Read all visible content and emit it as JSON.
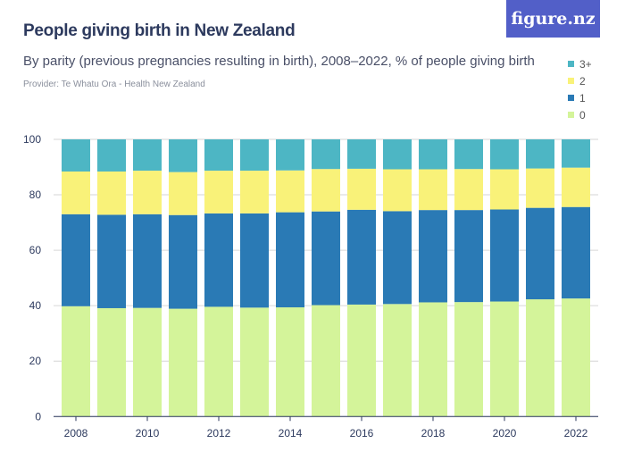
{
  "header": {
    "title": "People giving birth in New Zealand",
    "subtitle": "By parity (previous pregnancies resulting in birth), 2008–2022, % of people giving birth",
    "provider": "Provider: Te Whatu Ora - Health New Zealand",
    "logo": "figure.nz"
  },
  "chart_data": {
    "type": "bar",
    "stacked": true,
    "title": "People giving birth in New Zealand",
    "subtitle": "By parity (previous pregnancies resulting in birth), 2008–2022, % of people giving birth",
    "xlabel": "",
    "ylabel": "",
    "ylim": [
      0,
      100
    ],
    "yticks": [
      0,
      20,
      40,
      60,
      80,
      100
    ],
    "xticks": [
      "2008",
      "2010",
      "2012",
      "2014",
      "2016",
      "2018",
      "2020",
      "2022"
    ],
    "grid": true,
    "legend_position": "top-right",
    "categories": [
      "2008",
      "2009",
      "2010",
      "2011",
      "2012",
      "2013",
      "2014",
      "2015",
      "2016",
      "2017",
      "2018",
      "2019",
      "2020",
      "2021",
      "2022"
    ],
    "series": [
      {
        "name": "0",
        "color": "#d4f49a",
        "values": [
          39.8,
          39.1,
          39.2,
          38.9,
          39.6,
          39.3,
          39.4,
          40.2,
          40.4,
          40.6,
          41.2,
          41.3,
          41.5,
          42.3,
          42.6
        ]
      },
      {
        "name": "1",
        "color": "#2a7ab5",
        "values": [
          33.2,
          33.7,
          33.8,
          33.8,
          33.7,
          34.0,
          34.3,
          33.8,
          34.2,
          33.5,
          33.3,
          33.2,
          33.2,
          33.0,
          33.0
        ]
      },
      {
        "name": "2",
        "color": "#f9f279",
        "values": [
          15.4,
          15.6,
          15.7,
          15.5,
          15.4,
          15.4,
          15.1,
          15.3,
          14.8,
          15.1,
          14.7,
          14.8,
          14.5,
          14.2,
          14.2
        ]
      },
      {
        "name": "3+",
        "color": "#4db6c4",
        "values": [
          11.6,
          11.6,
          11.3,
          11.8,
          11.3,
          11.3,
          11.2,
          10.7,
          10.6,
          10.8,
          10.8,
          10.7,
          10.8,
          10.5,
          10.2
        ]
      }
    ]
  }
}
